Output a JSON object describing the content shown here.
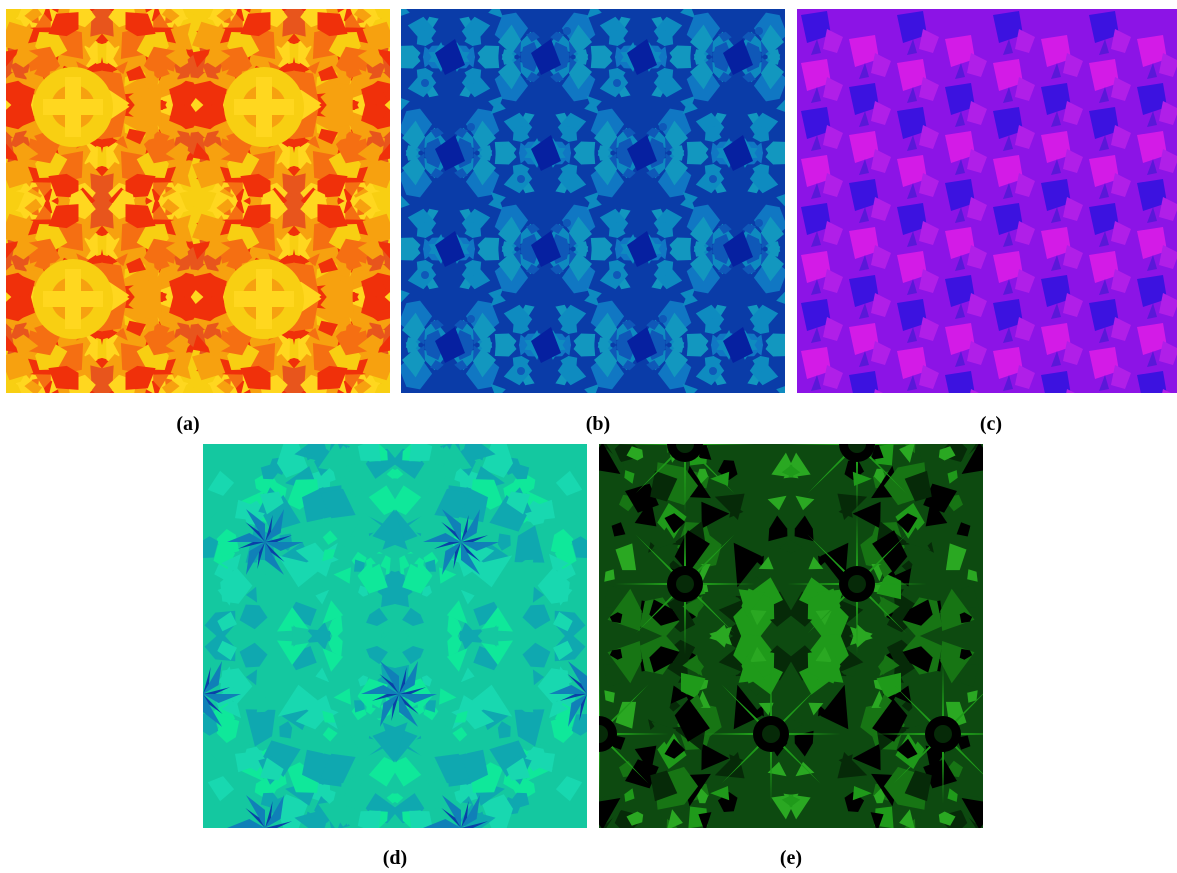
{
  "figure": {
    "panels": [
      {
        "id": "a",
        "caption": "(a)",
        "palette": [
          "#f0300a",
          "#f56f12",
          "#f7a10f",
          "#f8cf12",
          "#e8551c",
          "#ffd71f"
        ],
        "symmetry": "kaleidoscope-quad"
      },
      {
        "id": "b",
        "caption": "(b)",
        "palette": [
          "#0a3ca8",
          "#0f58b8",
          "#1077c3",
          "#1297bf",
          "#0620a0",
          "#0e8bc0"
        ],
        "symmetry": "grid-4x4"
      },
      {
        "id": "c",
        "caption": "(c)",
        "palette": [
          "#5a18d8",
          "#8c14e6",
          "#b01fe8",
          "#d31be7",
          "#3c12e0",
          "#a020f0"
        ],
        "symmetry": "vertical-stripes"
      },
      {
        "id": "d",
        "caption": "(d)",
        "palette": [
          "#0fe89a",
          "#14c8a0",
          "#0fa8b0",
          "#1080b8",
          "#0a40a8",
          "#18d8b0"
        ],
        "symmetry": "hexagonal-stars"
      },
      {
        "id": "e",
        "caption": "(e)",
        "palette": [
          "#062a08",
          "#0d4a10",
          "#177514",
          "#1f9a1a",
          "#000000",
          "#2aa822"
        ],
        "symmetry": "hexagonal-rosettes"
      }
    ]
  }
}
